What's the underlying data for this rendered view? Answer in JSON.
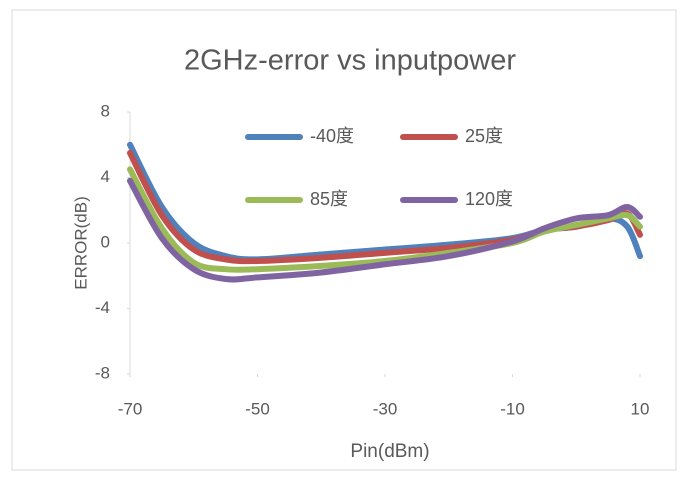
{
  "chart_data": {
    "type": "line",
    "title": "2GHz-error vs inputpower",
    "xlabel": "Pin(dBm)",
    "ylabel": "ERROR(dB)",
    "x": [
      -70,
      -65,
      -60,
      -55,
      -50,
      -40,
      -30,
      -20,
      -10,
      -5,
      0,
      5,
      8,
      10
    ],
    "series": [
      {
        "name": "-40度",
        "color": "#4f81bd",
        "values": [
          6,
          2.2,
          0,
          -0.8,
          -1,
          -0.7,
          -0.4,
          -0.1,
          0.3,
          0.8,
          1.0,
          1.5,
          1.0,
          -0.8
        ]
      },
      {
        "name": "25度",
        "color": "#c0504d",
        "values": [
          5.5,
          1.7,
          -0.4,
          -1.0,
          -1.1,
          -0.9,
          -0.6,
          -0.3,
          0.2,
          0.8,
          1.0,
          1.4,
          1.8,
          0.5
        ]
      },
      {
        "name": "85度",
        "color": "#9bbb59",
        "values": [
          4.5,
          0.9,
          -1.2,
          -1.6,
          -1.6,
          -1.4,
          -1.1,
          -0.6,
          0,
          0.7,
          1.1,
          1.5,
          1.7,
          1.0
        ]
      },
      {
        "name": "120度",
        "color": "#8064a2",
        "values": [
          3.8,
          0.3,
          -1.6,
          -2.2,
          -2.1,
          -1.8,
          -1.3,
          -0.8,
          0.1,
          0.9,
          1.5,
          1.7,
          2.2,
          1.6
        ]
      }
    ],
    "xlim": [
      -70,
      10
    ],
    "xticks": [
      -70,
      -50,
      -30,
      -10,
      10
    ],
    "ylim": [
      -8,
      8
    ],
    "yticks": [
      8,
      4,
      0,
      -4,
      -8
    ]
  }
}
